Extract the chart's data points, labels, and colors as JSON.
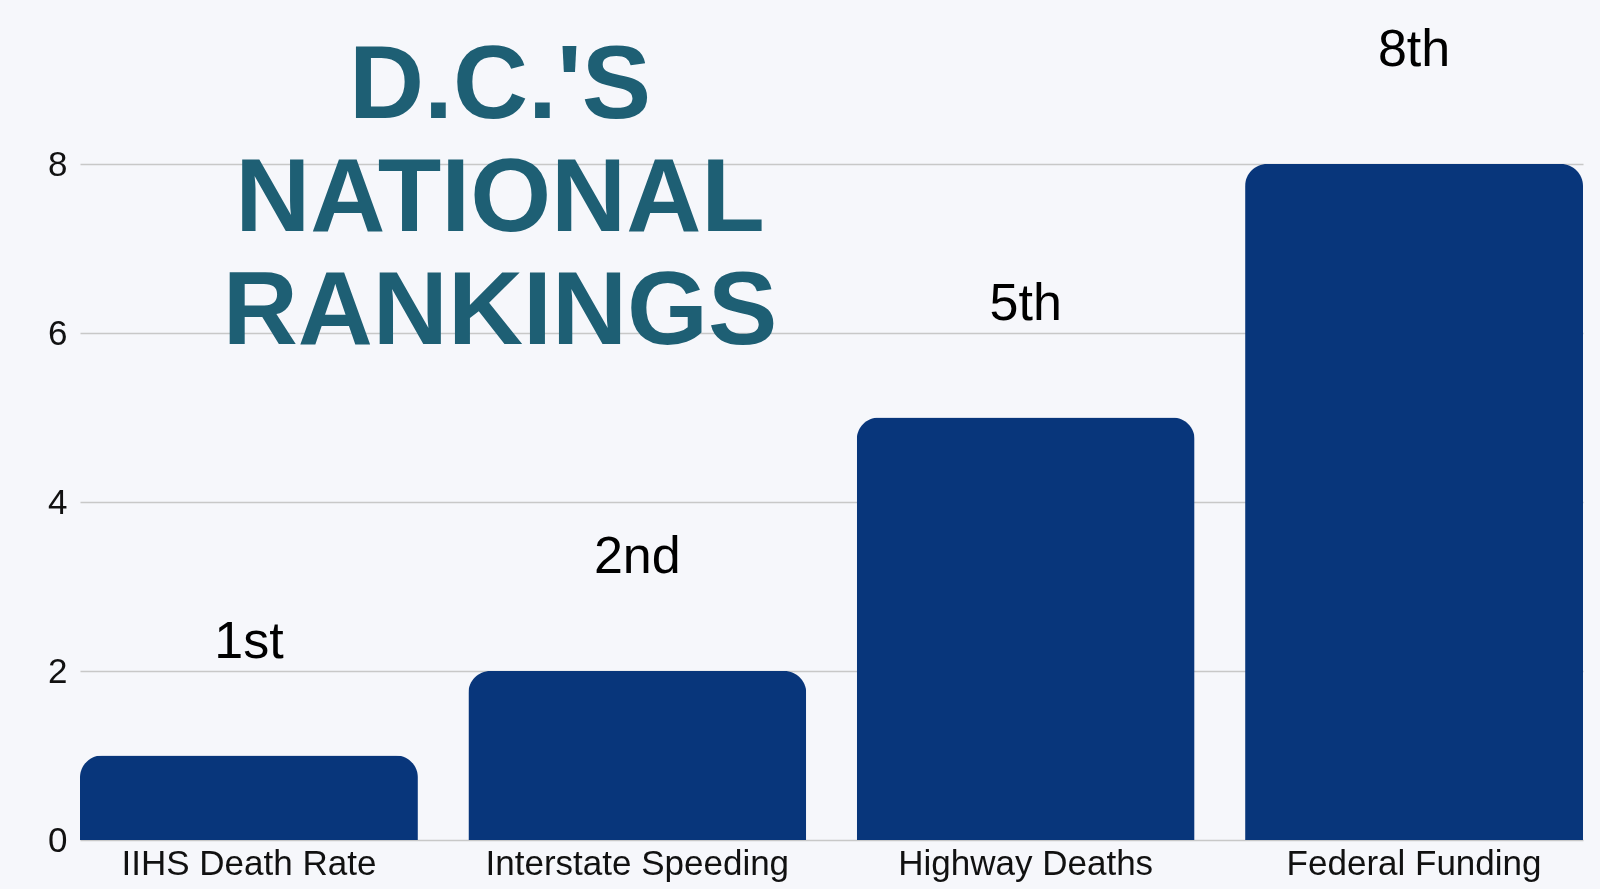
{
  "chart_data": {
    "type": "bar",
    "title": "D.C.'S NATIONAL RANKINGS",
    "categories": [
      "IIHS Death Rate",
      "Interstate Speeding",
      "Highway Deaths",
      "Federal Funding"
    ],
    "values": [
      1,
      2,
      5,
      8
    ],
    "value_labels": [
      "1st",
      "2nd",
      "5th",
      "8th"
    ],
    "color": "#08367b",
    "ylim": [
      0,
      8
    ],
    "yticks": [
      0,
      2,
      4,
      6,
      8
    ],
    "grid": "y"
  }
}
